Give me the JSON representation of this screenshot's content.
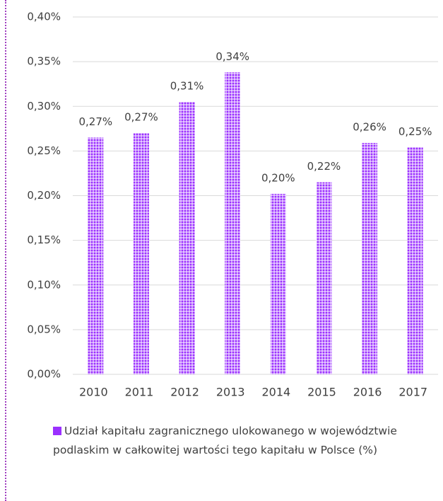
{
  "chart_data": {
    "type": "bar",
    "categories": [
      "2010",
      "2011",
      "2012",
      "2013",
      "2014",
      "2015",
      "2016",
      "2017"
    ],
    "series": [
      {
        "name": "Udział kapitału zagranicznego ulokowanego w województwie podlaskim w całkowitej wartości tego kapitału w Polsce (%)",
        "color": "#9b30ff",
        "values": [
          0.265,
          0.27,
          0.305,
          0.338,
          0.202,
          0.215,
          0.259,
          0.254
        ],
        "value_labels": [
          "0,27%",
          "0,27%",
          "0,31%",
          "0,34%",
          "0,20%",
          "0,22%",
          "0,26%",
          "0,25%"
        ]
      }
    ],
    "ylim": [
      0,
      0.4
    ],
    "yticks": [
      {
        "value": 0,
        "label": "0,00%"
      },
      {
        "value": 0.05,
        "label": "0,05%"
      },
      {
        "value": 0.1,
        "label": "0,10%"
      },
      {
        "value": 0.15,
        "label": "0,15%"
      },
      {
        "value": 0.2,
        "label": "0,20%"
      },
      {
        "value": 0.25,
        "label": "0,25%"
      },
      {
        "value": 0.3,
        "label": "0,30%"
      },
      {
        "value": 0.35,
        "label": "0,35%"
      },
      {
        "value": 0.4,
        "label": "0,40%"
      }
    ],
    "grid": true
  }
}
